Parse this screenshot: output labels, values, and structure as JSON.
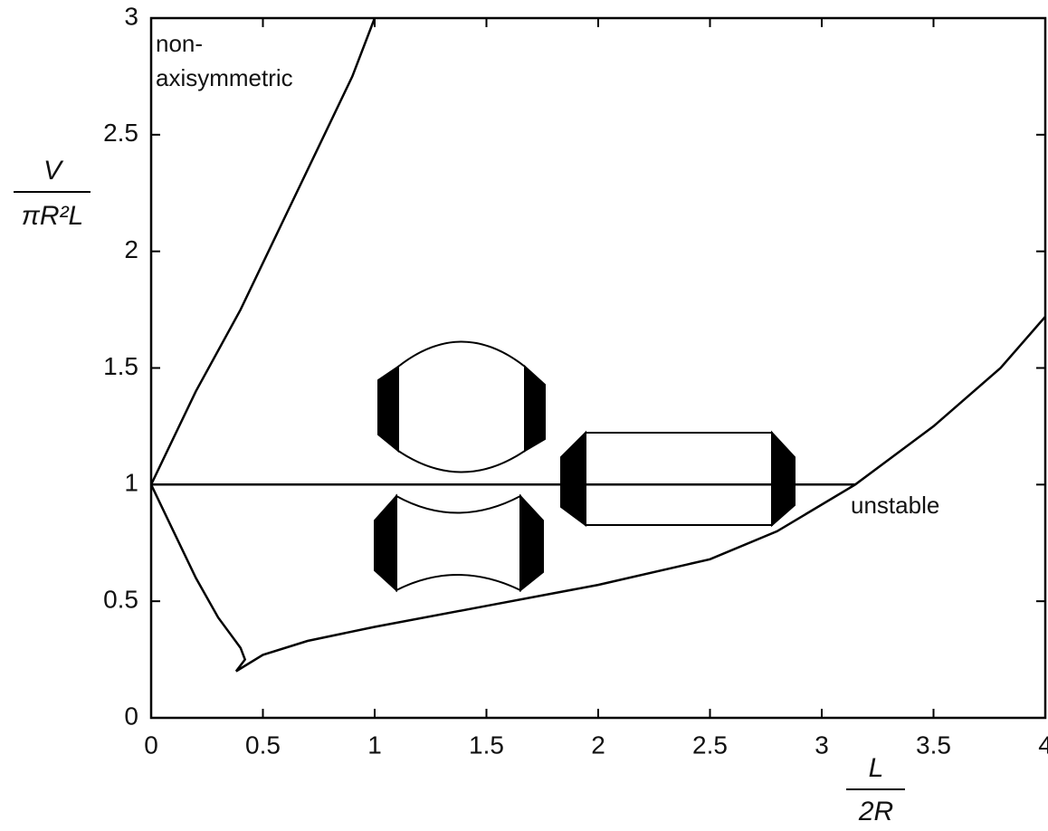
{
  "chart_data": {
    "type": "line",
    "xlim": [
      0,
      4
    ],
    "ylim": [
      0,
      3
    ],
    "xticks": [
      0,
      0.5,
      1,
      1.5,
      2,
      2.5,
      3,
      3.5,
      4
    ],
    "yticks": [
      0,
      0.5,
      1,
      1.5,
      2,
      2.5,
      3
    ],
    "x_label": {
      "numerator": "L",
      "denominator": "2R"
    },
    "y_label": {
      "numerator": "V",
      "denominator": "πR²L"
    },
    "annotations": [
      "non-",
      "axisymmetric",
      "unstable"
    ],
    "series": [
      {
        "color": "#000000",
        "x": [
          0,
          0.2,
          0.4,
          0.6,
          0.75,
          0.9,
          1.0
        ],
        "values": [
          1,
          1.4,
          1.75,
          2.15,
          2.45,
          2.75,
          3
        ]
      },
      {
        "color": "#000000",
        "x": [
          0,
          0.1,
          0.2,
          0.3,
          0.4,
          0.42,
          0.38,
          0.5,
          0.7,
          1.0,
          1.5,
          2.0,
          2.5,
          2.8,
          3.15,
          3.5,
          3.8,
          4.0
        ],
        "values": [
          1,
          0.8,
          0.6,
          0.43,
          0.3,
          0.25,
          0.2,
          0.27,
          0.33,
          0.39,
          0.48,
          0.57,
          0.68,
          0.8,
          1.0,
          1.25,
          1.5,
          1.72
        ]
      },
      {
        "color": "#000000",
        "x": [
          0,
          3.15
        ],
        "values": [
          1,
          1
        ]
      }
    ]
  }
}
